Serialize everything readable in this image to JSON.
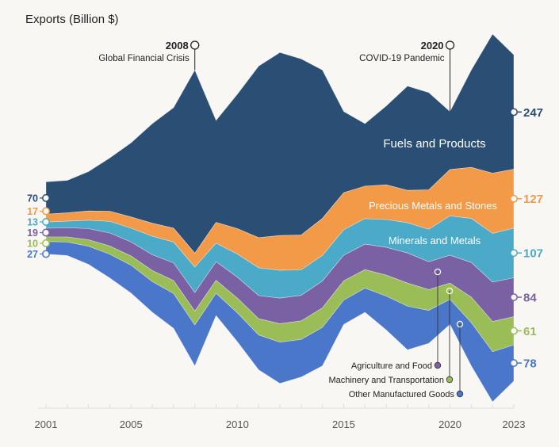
{
  "chart_data": {
    "type": "area",
    "subtype": "streamgraph",
    "title": "Exports (Billion $)",
    "xlabel": "",
    "ylabel": "Exports (Billion $)",
    "x": [
      2001,
      2002,
      2003,
      2004,
      2005,
      2006,
      2007,
      2008,
      2009,
      2010,
      2011,
      2012,
      2013,
      2014,
      2015,
      2016,
      2017,
      2018,
      2019,
      2020,
      2021,
      2022,
      2023
    ],
    "x_tick_labels": [
      "2001",
      "2005",
      "2010",
      "2015",
      "2020",
      "2023"
    ],
    "series": [
      {
        "name": "Fuels and Products",
        "color": "#2b4e74",
        "start_label": "70",
        "end_label": "247",
        "inline_label": true,
        "values": [
          70,
          70,
          85,
          115,
          160,
          215,
          260,
          395,
          220,
          290,
          370,
          395,
          380,
          320,
          175,
          135,
          170,
          225,
          210,
          125,
          210,
          300,
          247
        ]
      },
      {
        "name": "Precious Metals and Stones",
        "color": "#f39a48",
        "start_label": "17",
        "end_label": "127",
        "inline_label": true,
        "values": [
          17,
          18,
          20,
          22,
          24,
          28,
          30,
          30,
          45,
          55,
          65,
          75,
          75,
          80,
          80,
          70,
          75,
          70,
          85,
          100,
          110,
          130,
          127
        ]
      },
      {
        "name": "Minerals and Metals",
        "color": "#4aaac8",
        "start_label": "13",
        "end_label": "107",
        "inline_label": true,
        "values": [
          13,
          14,
          18,
          25,
          30,
          40,
          45,
          55,
          40,
          50,
          60,
          60,
          55,
          55,
          55,
          55,
          60,
          65,
          70,
          85,
          95,
          105,
          107
        ]
      },
      {
        "name": "Agriculture and Food",
        "color": "#7a61a4",
        "start_label": "19",
        "end_label": "84",
        "inline_label": false,
        "values": [
          19,
          20,
          24,
          28,
          30,
          34,
          38,
          40,
          40,
          45,
          50,
          55,
          55,
          58,
          55,
          55,
          60,
          65,
          60,
          60,
          75,
          85,
          84
        ]
      },
      {
        "name": "Machinery and Transportation",
        "color": "#9bbd58",
        "start_label": "10",
        "end_label": "61",
        "inline_label": false,
        "values": [
          10,
          11,
          14,
          18,
          20,
          24,
          28,
          30,
          28,
          32,
          35,
          40,
          40,
          42,
          42,
          40,
          45,
          50,
          45,
          35,
          55,
          65,
          61
        ]
      },
      {
        "name": "Other Manufactured Goods",
        "color": "#4a77c9",
        "start_label": "27",
        "end_label": "78",
        "inline_label": false,
        "values": [
          27,
          29,
          39,
          51,
          60,
          66,
          75,
          88,
          48,
          62,
          75,
          89,
          81,
          83,
          52,
          52,
          73,
          94,
          71,
          54,
          93,
          108,
          78
        ]
      }
    ],
    "annotations": [
      {
        "year": "2008",
        "text": "Global Financial Crisis"
      },
      {
        "year": "2020",
        "text": "COVID-19 Pandemic"
      }
    ],
    "legend_placement": "bottom-right",
    "grid": false
  }
}
